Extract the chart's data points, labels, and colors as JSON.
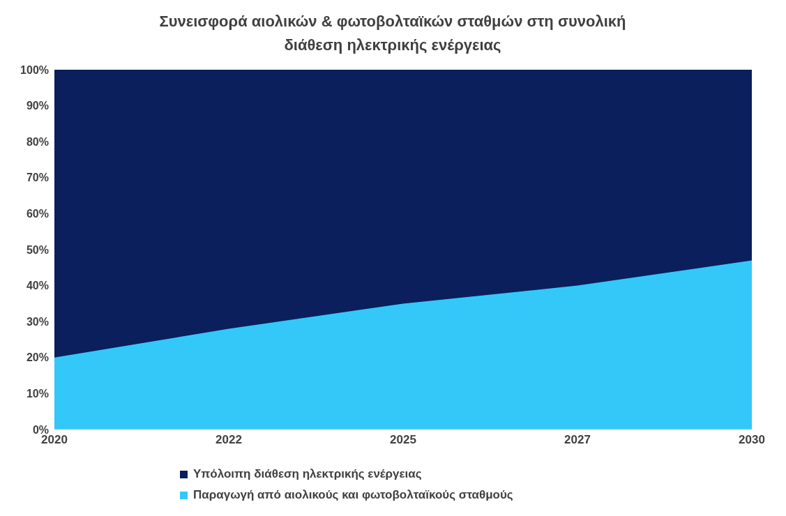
{
  "chart_data": {
    "type": "area",
    "title": "Συνεισφορά αιολικών & φωτοβολταϊκών σταθμών στη συνολική διάθεση ηλεκτρικής ενέργειας",
    "categories": [
      "2020",
      "2022",
      "2025",
      "2027",
      "2030"
    ],
    "stacked": true,
    "series": [
      {
        "name": "Παραγωγή από αιολικούς και φωτοβολταϊκούς σταθμούς",
        "color": "#33c8f8",
        "values": [
          20,
          28,
          35,
          40,
          47
        ]
      },
      {
        "name": "Υπόλοιπη διάθεση ηλεκτρικής ενέργειας",
        "color": "#0a1f5c",
        "values": [
          80,
          72,
          65,
          60,
          53
        ]
      }
    ],
    "ylim": [
      0,
      100
    ],
    "yticks": [
      {
        "value": 0,
        "label": "0%"
      },
      {
        "value": 10,
        "label": "10%"
      },
      {
        "value": 20,
        "label": "20%"
      },
      {
        "value": 30,
        "label": "30%"
      },
      {
        "value": 40,
        "label": "40%"
      },
      {
        "value": 50,
        "label": "50%"
      },
      {
        "value": 60,
        "label": "60%"
      },
      {
        "value": 70,
        "label": "70%"
      },
      {
        "value": 80,
        "label": "80%"
      },
      {
        "value": 90,
        "label": "90%"
      },
      {
        "value": 100,
        "label": "100%"
      }
    ],
    "legend": "bottom"
  }
}
